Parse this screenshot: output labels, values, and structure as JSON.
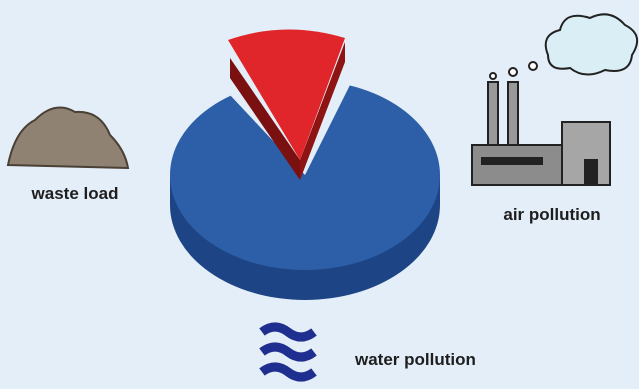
{
  "labels": {
    "waste": "waste load",
    "air": "air pollution",
    "water": "water pollution"
  }
}
